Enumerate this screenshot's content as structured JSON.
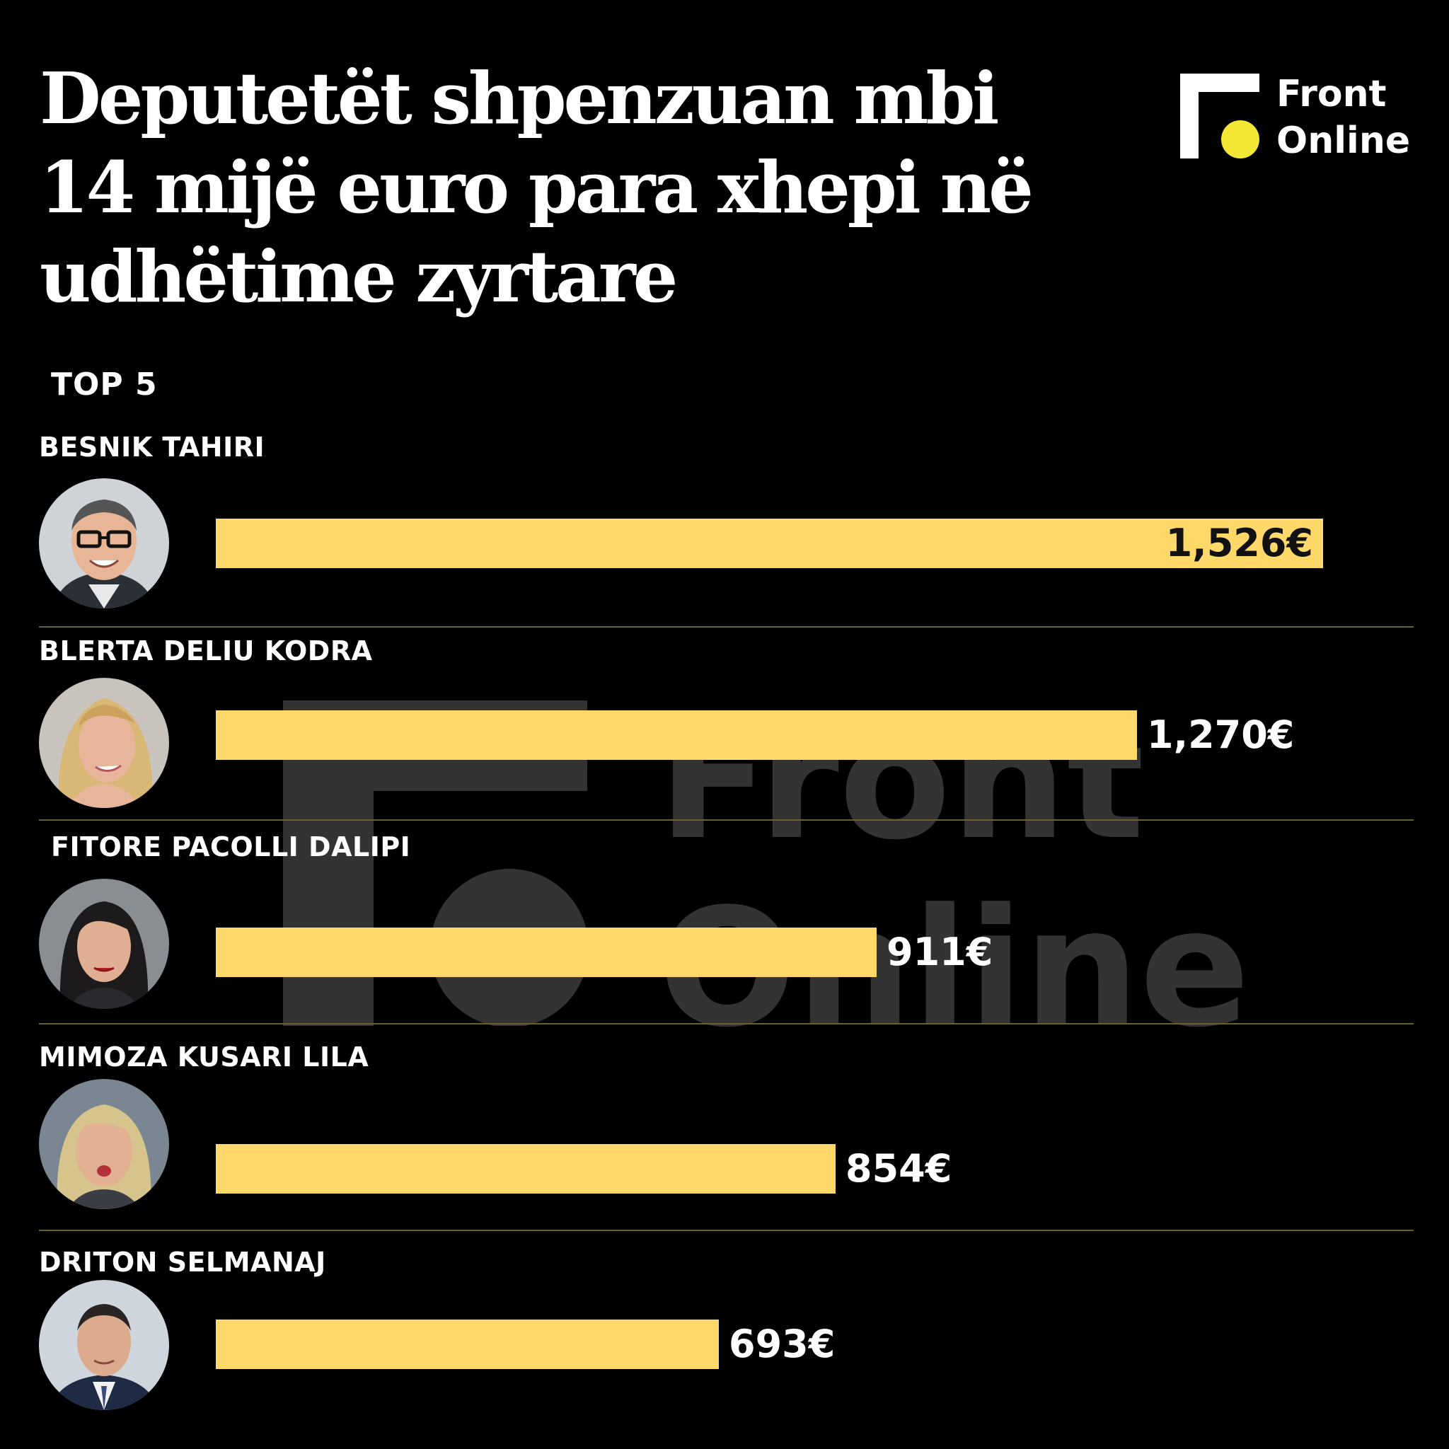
{
  "header": {
    "title_lines": [
      "Deputetët shpenzuan mbi",
      "14 mijë euro para xhepi në",
      "udhëtime zyrtare"
    ],
    "subtitle": "TOP 5"
  },
  "logo": {
    "line1": "Front",
    "line2": "Online",
    "accent_color": "#f4e634"
  },
  "watermark": {
    "line1": "Front",
    "line2": "Online"
  },
  "colors": {
    "background": "#000000",
    "bar": "#fed96a",
    "divider": "#6b6234",
    "text": "#ffffff"
  },
  "chart_data": {
    "type": "bar",
    "orientation": "horizontal",
    "title": "Deputetët shpenzuan mbi 14 mijë euro para xhepi në udhëtime zyrtare",
    "subtitle": "TOP 5",
    "xlim": [
      0,
      1526
    ],
    "grid": false,
    "categories": [
      "BESNIK TAHIRI",
      "BLERTA DELIU KODRA",
      "FITORE PACOLLI DALIPI",
      "MIMOZA KUSARI LILA",
      "DRITON SELMANAJ"
    ],
    "values": [
      1526,
      1270,
      911,
      854,
      693
    ],
    "value_labels": [
      "1,526€",
      "1,270€",
      "911€",
      "854€",
      "693€"
    ],
    "unit": "€"
  }
}
